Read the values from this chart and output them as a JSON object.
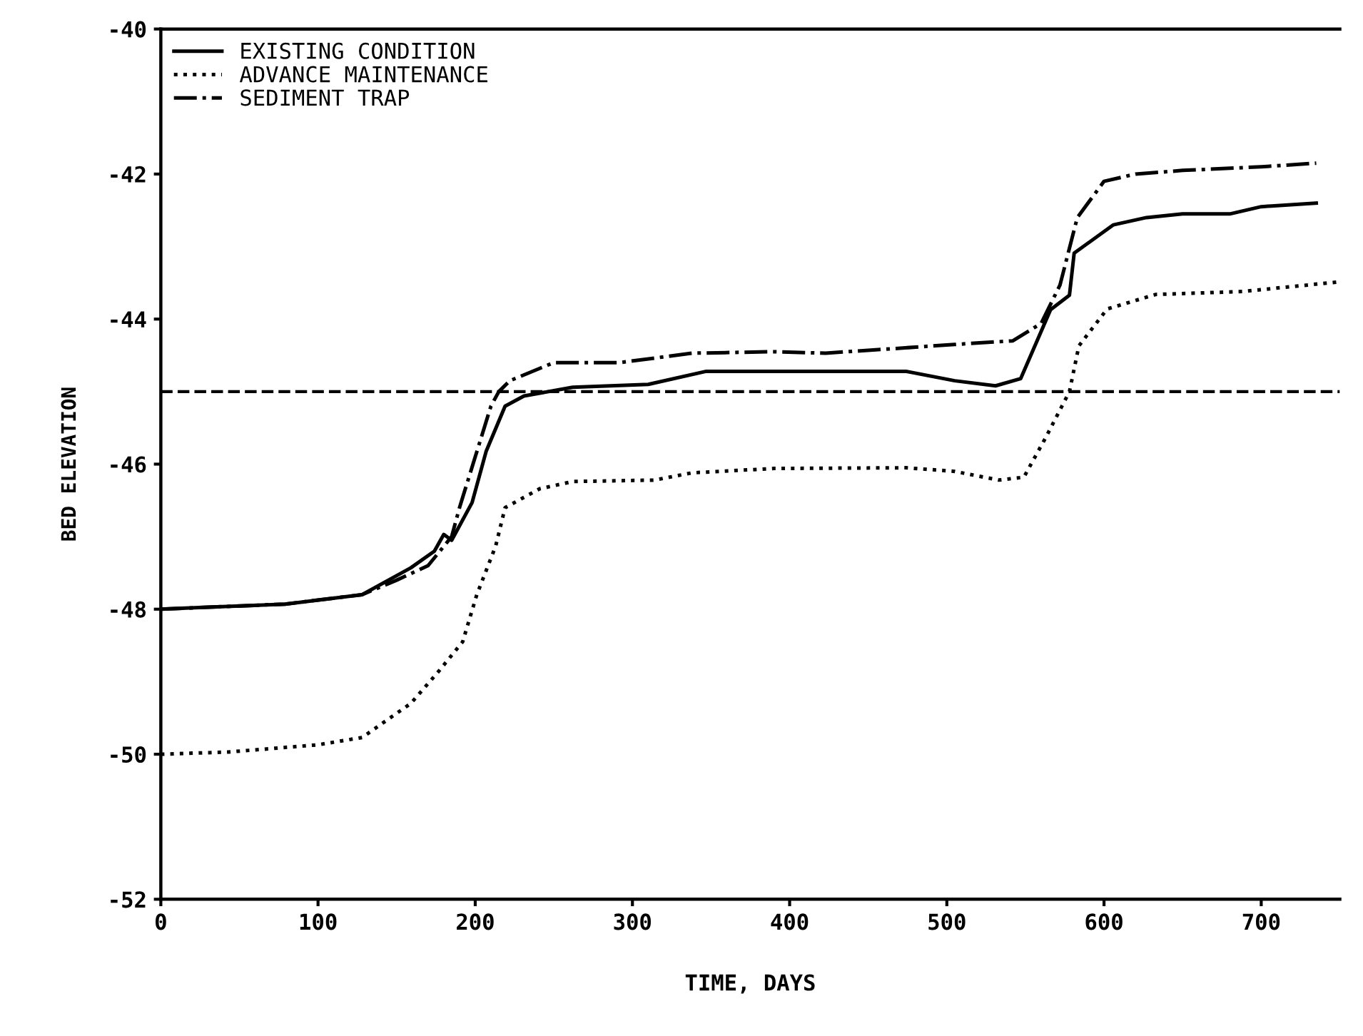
{
  "chart_data": {
    "type": "line",
    "xlabel": "TIME, DAYS",
    "ylabel": "BED ELEVATION",
    "xlim": [
      0,
      750
    ],
    "ylim": [
      -52,
      -40
    ],
    "xticks": [
      {
        "value": 0,
        "label": "0"
      },
      100,
      200,
      300,
      400,
      500,
      600,
      700
    ],
    "yticks": [
      -52,
      -50,
      -48,
      -46,
      -44,
      -42,
      -40
    ],
    "grid": false,
    "legend": "top left",
    "marker": "none",
    "ref_lines": [
      {
        "axis": "y",
        "value": -45,
        "line_style": "dashed",
        "color": "#000000"
      }
    ],
    "series": [
      {
        "name": "EXISTING CONDITION",
        "color": "#000000",
        "line_style": "solid",
        "x": [
          0,
          79,
          128,
          159,
          174,
          180,
          185,
          198,
          207,
          219,
          231,
          262,
          310,
          347,
          390,
          474,
          505,
          531,
          547,
          566,
          578,
          581,
          606,
          627,
          650,
          680,
          700,
          735
        ],
        "values": [
          -48,
          -47.93,
          -47.8,
          -47.43,
          -47.2,
          -46.97,
          -47.05,
          -46.53,
          -45.82,
          -45.2,
          -45.06,
          -44.94,
          -44.9,
          -44.72,
          -44.72,
          -44.72,
          -44.85,
          -44.92,
          -44.82,
          -43.87,
          -43.67,
          -43.09,
          -42.7,
          -42.6,
          -42.55,
          -42.55,
          -42.45,
          -42.4
        ]
      },
      {
        "name": "ADVANCE MAINTENANCE",
        "color": "#000000",
        "line_style": "dotted",
        "x": [
          0,
          43,
          100,
          128,
          159,
          177,
          192,
          201,
          213,
          219,
          241,
          262,
          314,
          338,
          390,
          474,
          505,
          533,
          549,
          563,
          578,
          584,
          602,
          633,
          688,
          748
        ],
        "values": [
          -50,
          -49.97,
          -49.87,
          -49.77,
          -49.3,
          -48.85,
          -48.45,
          -47.8,
          -47.13,
          -46.6,
          -46.34,
          -46.24,
          -46.22,
          -46.12,
          -46.06,
          -46.05,
          -46.1,
          -46.22,
          -46.18,
          -45.63,
          -45,
          -44.37,
          -43.86,
          -43.66,
          -43.62,
          -43.49
        ]
      },
      {
        "name": "SEDIMENT TRAP",
        "color": "#000000",
        "line_style": "dashdot",
        "x": [
          0,
          79,
          128,
          150,
          170,
          185,
          190,
          200,
          210,
          215,
          222,
          250,
          292,
          338,
          390,
          423,
          505,
          542,
          560,
          572,
          583,
          600,
          620,
          650,
          700,
          735
        ],
        "values": [
          -48,
          -47.93,
          -47.8,
          -47.6,
          -47.4,
          -47.0,
          -46.6,
          -45.9,
          -45.2,
          -45.0,
          -44.85,
          -44.6,
          -44.6,
          -44.47,
          -44.45,
          -44.47,
          -44.35,
          -44.3,
          -44.06,
          -43.53,
          -42.6,
          -42.1,
          -42.0,
          -41.95,
          -41.9,
          -41.85
        ]
      }
    ]
  }
}
